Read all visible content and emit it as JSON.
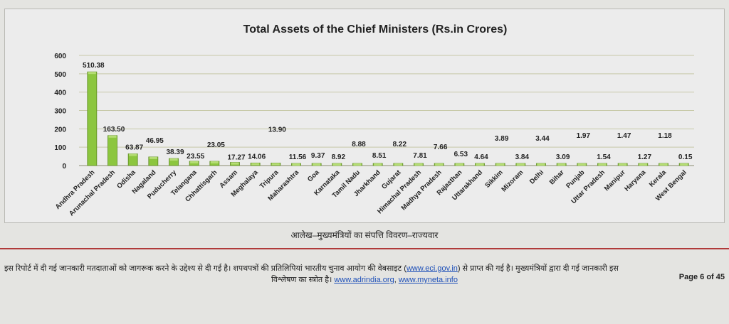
{
  "colors": {
    "bar_fill": "#8cc63f",
    "bar_top": "#b5dd74",
    "bar_stroke": "#5e8a22",
    "gridline": "#c7c9a8",
    "accent_line": "#b03a3a",
    "link": "#1d4fb8"
  },
  "chart_data": {
    "type": "bar",
    "title": "Total Assets of the Chief Ministers (Rs.in Crores)",
    "xlabel": "",
    "ylabel": "",
    "ylim": [
      0,
      600
    ],
    "yticks": [
      "0",
      "100",
      "200",
      "300",
      "400",
      "500",
      "600"
    ],
    "grid": true,
    "legend": "none",
    "categories": [
      "Andhra Pradesh",
      "Arunachal Pradesh",
      "Odisha",
      "Nagaland",
      "Puducherry",
      "Telangana",
      "Chhattisgarh",
      "Assam",
      "Meghalaya",
      "Tripura",
      "Maharashtra",
      "Goa",
      "Karnataka",
      "Tamil Nadu",
      "Jharkhand",
      "Gujarat",
      "Himachal Pradesh",
      "Madhya Pradesh",
      "Rajasthan",
      "Uttarakhand",
      "Sikkim",
      "Mizoram",
      "Delhi",
      "Bihar",
      "Punjab",
      "Uttar Pradesh",
      "Manipur",
      "Haryana",
      "Kerala",
      "West Bengal"
    ],
    "values": [
      510.38,
      163.5,
      63.87,
      46.95,
      38.39,
      23.55,
      23.05,
      17.27,
      14.06,
      13.9,
      11.56,
      9.37,
      8.92,
      8.88,
      8.51,
      8.22,
      7.81,
      7.66,
      6.53,
      4.64,
      3.89,
      3.84,
      3.44,
      3.09,
      1.97,
      1.54,
      1.47,
      1.27,
      1.18,
      0.15
    ],
    "value_labels": [
      "510.38",
      "163.50",
      "63.87",
      "46.95",
      "38.39",
      "23.55",
      "23.05",
      "17.27",
      "14.06",
      "13.90",
      "11.56",
      "9.37",
      "8.92",
      "8.88",
      "8.51",
      "8.22",
      "7.81",
      "7.66",
      "6.53",
      "4.64",
      "3.89",
      "3.84",
      "3.44",
      "3.09",
      "1.97",
      "1.54",
      "1.47",
      "1.27",
      "1.18",
      "0.15"
    ]
  },
  "caption": "आलेख–मुख्यमंत्रियों का संपत्ति विवरण–राज्यवार",
  "footer": {
    "line1_part1": "इस रिपोर्ट में दी गई जानकारी मतदाताओं को जागरूक करने के उद्देश्य से दी गई है। शपथपत्रों की प्रतिलिपियां भारतीय चुनाव आयोग की वेबसाइट (",
    "link_eci": "www.eci.gov.in",
    "line1_part2": ") से प्राप्त की गई है। मुख्यमंत्रियों द्वारा दी गई जानकारी इस",
    "line2_part1": "विश्लेषण का स्त्रोत है।",
    "link_adr": "www.adrindia.org",
    "comma": ",",
    "link_myneta": "www.myneta.info",
    "page": "Page 6 of 45"
  }
}
